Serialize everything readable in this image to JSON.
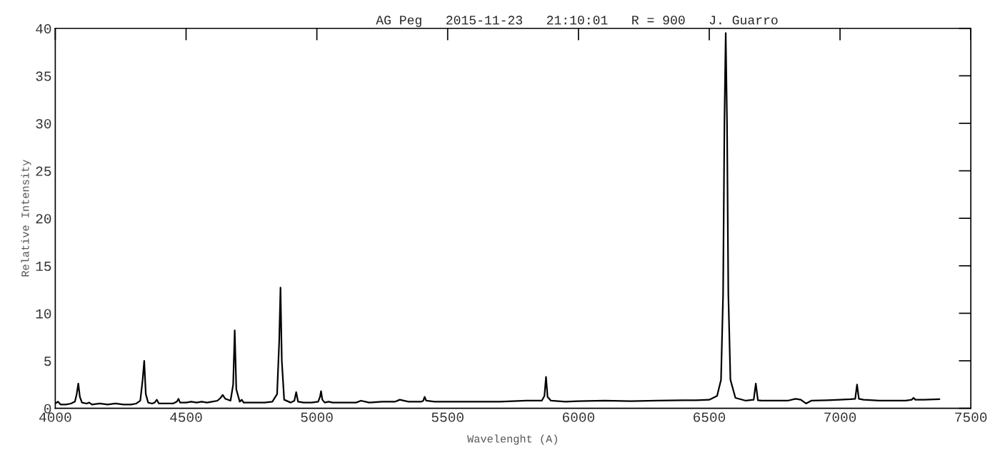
{
  "chart_data": {
    "type": "line",
    "title": "AG Peg   2015-11-23   21:10:01   R = 900   J. Guarro",
    "xlabel": "Wavelenght (A)",
    "ylabel": "Relative Intensity",
    "xlim": [
      4000,
      7500
    ],
    "xticks": [
      4000,
      4500,
      5000,
      5500,
      6000,
      6500,
      7000,
      7500
    ],
    "ylim": [
      0,
      40
    ],
    "yticks": [
      0,
      5,
      10,
      15,
      20,
      25,
      30,
      35,
      40
    ],
    "grid": false,
    "series": [
      {
        "color": "#000000",
        "x": [
          4000,
          4010,
          4020,
          4040,
          4060,
          4075,
          4082,
          4088,
          4094,
          4102,
          4120,
          4130,
          4140,
          4170,
          4200,
          4230,
          4260,
          4290,
          4310,
          4325,
          4334,
          4340,
          4346,
          4355,
          4370,
          4380,
          4388,
          4396,
          4420,
          4450,
          4465,
          4471,
          4477,
          4500,
          4520,
          4540,
          4560,
          4580,
          4600,
          4620,
          4632,
          4640,
          4650,
          4670,
          4680,
          4686,
          4692,
          4705,
          4713,
          4720,
          4760,
          4800,
          4830,
          4848,
          4856,
          4861,
          4866,
          4875,
          4900,
          4914,
          4921,
          4928,
          4950,
          4980,
          5005,
          5012,
          5016,
          5021,
          5030,
          5045,
          5060,
          5100,
          5150,
          5169,
          5200,
          5250,
          5300,
          5317,
          5350,
          5400,
          5407,
          5412,
          5418,
          5450,
          5500,
          5600,
          5700,
          5800,
          5860,
          5870,
          5876,
          5882,
          5895,
          5950,
          6000,
          6100,
          6200,
          6300,
          6400,
          6450,
          6500,
          6530,
          6545,
          6553,
          6558,
          6563,
          6568,
          6573,
          6581,
          6600,
          6640,
          6670,
          6678,
          6686,
          6700,
          6750,
          6800,
          6830,
          6850,
          6870,
          6890,
          6950,
          7000,
          7040,
          7058,
          7065,
          7072,
          7090,
          7150,
          7200,
          7250,
          7274,
          7281,
          7288,
          7320,
          7380
        ],
        "values": [
          0.5,
          0.7,
          0.4,
          0.4,
          0.5,
          0.7,
          1.5,
          2.6,
          1.2,
          0.6,
          0.5,
          0.6,
          0.4,
          0.5,
          0.4,
          0.5,
          0.4,
          0.4,
          0.5,
          0.8,
          3.0,
          5.0,
          1.5,
          0.6,
          0.5,
          0.6,
          0.9,
          0.5,
          0.5,
          0.5,
          0.7,
          1.0,
          0.6,
          0.6,
          0.7,
          0.6,
          0.7,
          0.6,
          0.7,
          0.8,
          1.1,
          1.4,
          1.0,
          0.8,
          2.5,
          8.2,
          2.0,
          0.7,
          0.9,
          0.6,
          0.6,
          0.6,
          0.7,
          1.5,
          7.0,
          12.7,
          5.0,
          0.9,
          0.6,
          0.8,
          1.7,
          0.7,
          0.6,
          0.6,
          0.7,
          1.2,
          1.8,
          0.9,
          0.6,
          0.7,
          0.6,
          0.6,
          0.6,
          0.8,
          0.6,
          0.7,
          0.7,
          0.9,
          0.7,
          0.7,
          0.8,
          1.2,
          0.8,
          0.7,
          0.7,
          0.7,
          0.7,
          0.8,
          0.8,
          1.3,
          3.3,
          1.2,
          0.8,
          0.7,
          0.75,
          0.8,
          0.75,
          0.8,
          0.85,
          0.85,
          0.9,
          1.3,
          3.0,
          12.0,
          30.0,
          39.5,
          30.0,
          12.0,
          3.0,
          1.1,
          0.8,
          0.9,
          2.6,
          0.85,
          0.8,
          0.8,
          0.8,
          1.0,
          0.9,
          0.5,
          0.8,
          0.85,
          0.9,
          0.95,
          1.0,
          2.5,
          1.0,
          0.9,
          0.8,
          0.8,
          0.8,
          0.9,
          1.1,
          0.9,
          0.9,
          0.95
        ]
      }
    ]
  }
}
